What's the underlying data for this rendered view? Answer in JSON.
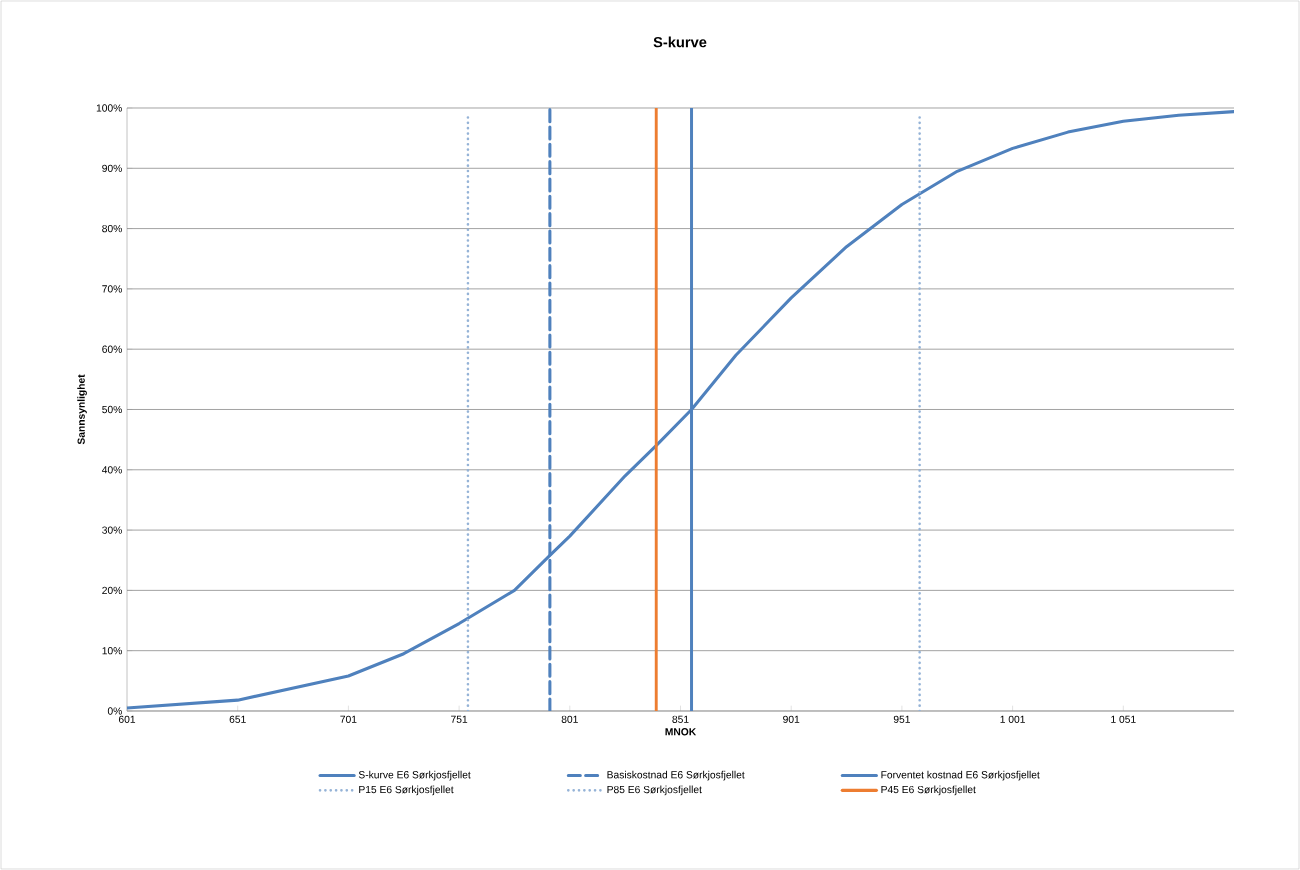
{
  "chart_data": {
    "type": "line",
    "title": "S-kurve",
    "xlabel": "MNOK",
    "ylabel": "Sannsynlighet",
    "xlim": [
      601,
      1101
    ],
    "ylim": [
      0,
      100
    ],
    "xticks": [
      601,
      651,
      701,
      751,
      801,
      851,
      901,
      951,
      {
        "value": 1001,
        "label": "1 001"
      },
      {
        "value": 1051,
        "label": "1 051"
      }
    ],
    "yticks": [
      {
        "value": 0,
        "label": "0%"
      },
      {
        "value": 10,
        "label": "10%"
      },
      {
        "value": 20,
        "label": "20%"
      },
      {
        "value": 30,
        "label": "30%"
      },
      {
        "value": 40,
        "label": "40%"
      },
      {
        "value": 50,
        "label": "50%"
      },
      {
        "value": 60,
        "label": "60%"
      },
      {
        "value": 70,
        "label": "70%"
      },
      {
        "value": 80,
        "label": "80%"
      },
      {
        "value": 90,
        "label": "90%"
      },
      {
        "value": 100,
        "label": "100%"
      }
    ],
    "grid": "y",
    "legend": "bottom",
    "marker": "none",
    "series": [
      {
        "name": "S-kurve E6 Sørkjosfjellet",
        "color": "#4f81bd",
        "line_style": "solid",
        "x": [
          601,
          651,
          701,
          726,
          751,
          776,
          792,
          801,
          826,
          840,
          856,
          876,
          901,
          926,
          951,
          976,
          1001,
          1026,
          1051,
          1076,
          1101
        ],
        "values": [
          0.5,
          1.8,
          5.8,
          9.5,
          14.5,
          20,
          25.8,
          29,
          39,
          44,
          50,
          59,
          68.5,
          77,
          84,
          89.5,
          93.3,
          96,
          97.8,
          98.8,
          99.4
        ]
      },
      {
        "name": "Basiskostnad E6 Sørkjosfjellet",
        "color": "#4f81bd",
        "line_style": "dashed",
        "x": [
          792,
          792
        ],
        "values": [
          0,
          100
        ]
      },
      {
        "name": "Forventet kostnad E6 Sørkjosfjellet",
        "color": "#4f81bd",
        "line_style": "solid",
        "x": [
          856,
          856
        ],
        "values": [
          0,
          100
        ]
      },
      {
        "name": "P15 E6 Sørkjosfjellet",
        "color": "#95b3d7",
        "line_style": "dotted",
        "x": [
          755,
          755
        ],
        "values": [
          0,
          99
        ]
      },
      {
        "name": "P85 E6 Sørkjosfjellet",
        "color": "#95b3d7",
        "line_style": "dotted",
        "x": [
          959,
          959
        ],
        "values": [
          0,
          99
        ]
      },
      {
        "name": "P45 E6 Sørkjosfjellet",
        "color": "#ed7d31",
        "line_style": "solid",
        "x": [
          840,
          840
        ],
        "values": [
          0,
          100
        ]
      }
    ]
  }
}
